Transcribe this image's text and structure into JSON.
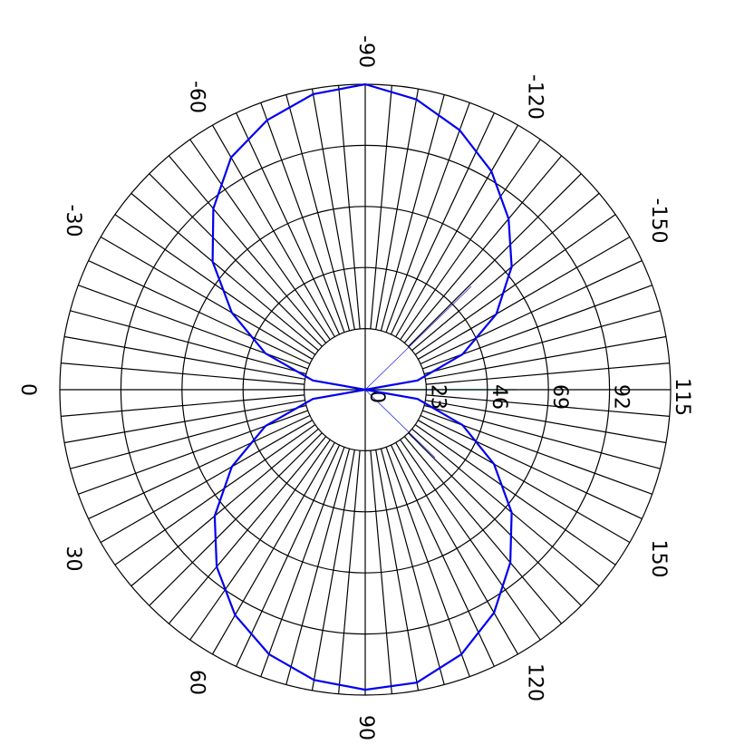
{
  "chart_data": {
    "type": "polar",
    "theta": [
      -180,
      -170,
      -160,
      -150,
      -140,
      -130,
      -120,
      -110,
      -100,
      -90,
      -80,
      -70,
      -60,
      -50,
      -40,
      -30,
      -20,
      -10,
      0,
      10,
      20,
      30,
      40,
      50,
      60,
      70,
      80,
      90,
      100,
      110,
      120,
      130,
      140,
      150,
      160,
      170,
      180
    ],
    "series": [
      {
        "color": "#0000ee",
        "values": [
          0,
          20,
          39,
          57,
          72,
          84,
          95,
          104,
          111,
          115,
          113,
          108,
          101,
          89,
          75,
          58,
          40,
          20,
          0,
          20,
          40,
          58,
          74,
          87,
          98,
          106,
          111,
          113,
          112,
          106,
          97,
          85,
          72,
          56,
          39,
          20,
          0
        ]
      }
    ],
    "rlim": [
      0,
      115
    ],
    "rticks": [
      0,
      23,
      46,
      69,
      92,
      115
    ],
    "thetaticks": [
      -150,
      -120,
      -90,
      -60,
      -30,
      0,
      30,
      60,
      90,
      120,
      150
    ]
  }
}
